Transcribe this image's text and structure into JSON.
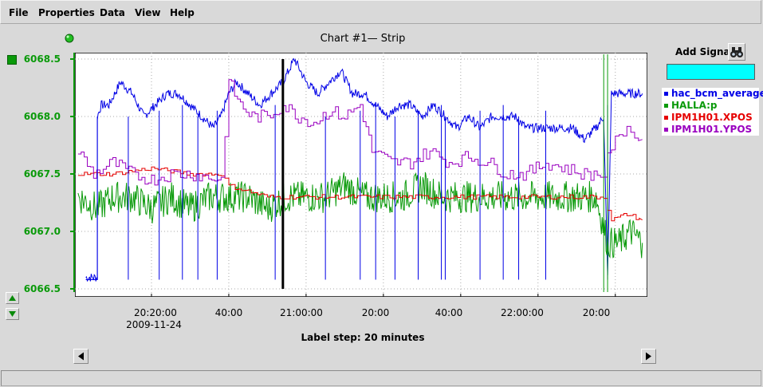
{
  "menu": {
    "file": "File",
    "properties": "Properties",
    "data": "Data",
    "view": "View",
    "help": "Help"
  },
  "chart": {
    "title": "Chart #1— Strip",
    "label_step": "Label step: 20 minutes"
  },
  "add_signal": {
    "label": "Add Signal",
    "value": ""
  },
  "statusbar": {
    "text": ""
  },
  "icons": {
    "status_dot": "green-led-icon",
    "color_box": "green-square-icon",
    "scale_up": "triangle-up-icon",
    "scale_down": "triangle-down-icon",
    "binoculars": "binoculars-icon",
    "scroll_left": "triangle-left-icon",
    "scroll_right": "triangle-right-icon"
  },
  "colors": {
    "hac_bcm_average": "#0000e6",
    "HALLA:p": "#0a9a0a",
    "IPM1H01.XPOS": "#e60000",
    "IPM1H01.YPOS": "#9a00c0",
    "signal_input_bg": "#00ffff"
  },
  "chart_data": {
    "type": "line",
    "title": "Chart #1— Strip",
    "xlabel": "Label step: 20 minutes",
    "ylabel": "",
    "x_tick_labels": [
      "20:20:00",
      "40:00",
      "21:00:00",
      "20:00",
      "40:00",
      "22:00:00",
      "20:00"
    ],
    "x_date_label": "2009-11-24",
    "y_tick_labels": [
      "6066.5",
      "6067.0",
      "6067.5",
      "6068.0",
      "6068.5"
    ],
    "ylim": [
      6066.5,
      6068.5
    ],
    "grid": true,
    "legend_position": "right",
    "cursor_time": "20:54:30",
    "series": [
      {
        "name": "hac_bcm_average",
        "color": "#0000e6",
        "points": [
          [
            "20:03",
            6066.6
          ],
          [
            "20:06",
            6066.6
          ],
          [
            "20:06",
            6068.0
          ],
          [
            "20:07",
            6068.1
          ],
          [
            "20:09",
            6068.1
          ],
          [
            "20:12",
            6068.3
          ],
          [
            "20:15",
            6068.2
          ],
          [
            "20:18",
            6068.0
          ],
          [
            "20:21",
            6068.1
          ],
          [
            "20:24",
            6068.2
          ],
          [
            "20:27",
            6068.2
          ],
          [
            "20:30",
            6068.1
          ],
          [
            "20:33",
            6068.0
          ],
          [
            "20:36",
            6067.9
          ],
          [
            "20:38",
            6068.0
          ],
          [
            "20:40",
            6068.2
          ],
          [
            "20:42",
            6068.3
          ],
          [
            "20:45",
            6068.2
          ],
          [
            "20:48",
            6068.1
          ],
          [
            "20:51",
            6068.2
          ],
          [
            "20:54",
            6068.3
          ],
          [
            "20:57",
            6068.5
          ],
          [
            "21:00",
            6068.3
          ],
          [
            "21:03",
            6068.2
          ],
          [
            "21:06",
            6068.3
          ],
          [
            "21:09",
            6068.4
          ],
          [
            "21:12",
            6068.2
          ],
          [
            "21:15",
            6068.2
          ],
          [
            "21:18",
            6068.1
          ],
          [
            "21:21",
            6068.0
          ],
          [
            "21:24",
            6068.1
          ],
          [
            "21:27",
            6068.1
          ],
          [
            "21:30",
            6068.0
          ],
          [
            "21:33",
            6068.1
          ],
          [
            "21:36",
            6068.0
          ],
          [
            "21:39",
            6067.9
          ],
          [
            "21:42",
            6068.0
          ],
          [
            "21:45",
            6067.9
          ],
          [
            "21:48",
            6068.0
          ],
          [
            "21:51",
            6068.0
          ],
          [
            "21:54",
            6068.0
          ],
          [
            "21:57",
            6067.9
          ],
          [
            "22:00",
            6067.9
          ],
          [
            "22:03",
            6067.9
          ],
          [
            "22:06",
            6067.9
          ],
          [
            "22:09",
            6067.9
          ],
          [
            "22:12",
            6067.8
          ],
          [
            "22:15",
            6067.9
          ],
          [
            "22:17",
            6068.0
          ],
          [
            "22:18",
            6066.6
          ],
          [
            "22:19",
            6068.2
          ],
          [
            "22:24",
            6068.2
          ],
          [
            "22:27",
            6068.2
          ]
        ]
      },
      {
        "name": "HALLA:p",
        "color": "#0a9a0a",
        "points": [
          [
            "20:01",
            6067.3
          ],
          [
            "20:06",
            6067.2
          ],
          [
            "20:10",
            6067.3
          ],
          [
            "20:15",
            6067.3
          ],
          [
            "20:20",
            6067.2
          ],
          [
            "20:25",
            6067.3
          ],
          [
            "20:30",
            6067.2
          ],
          [
            "20:35",
            6067.3
          ],
          [
            "20:40",
            6067.3
          ],
          [
            "20:45",
            6067.3
          ],
          [
            "20:50",
            6067.2
          ],
          [
            "20:55",
            6067.3
          ],
          [
            "21:00",
            6067.3
          ],
          [
            "21:05",
            6067.3
          ],
          [
            "21:10",
            6067.4
          ],
          [
            "21:15",
            6067.3
          ],
          [
            "21:20",
            6067.3
          ],
          [
            "21:25",
            6067.3
          ],
          [
            "21:30",
            6067.4
          ],
          [
            "21:35",
            6067.3
          ],
          [
            "21:40",
            6067.3
          ],
          [
            "21:45",
            6067.3
          ],
          [
            "21:50",
            6067.3
          ],
          [
            "21:55",
            6067.3
          ],
          [
            "22:00",
            6067.3
          ],
          [
            "22:05",
            6067.3
          ],
          [
            "22:10",
            6067.3
          ],
          [
            "22:15",
            6067.3
          ],
          [
            "22:18",
            6066.9
          ],
          [
            "22:21",
            6066.9
          ],
          [
            "22:24",
            6067.0
          ],
          [
            "22:27",
            6066.9
          ]
        ]
      },
      {
        "name": "IPM1H01.XPOS",
        "color": "#e60000",
        "points": [
          [
            "20:01",
            6067.5
          ],
          [
            "20:10",
            6067.5
          ],
          [
            "20:20",
            6067.55
          ],
          [
            "20:30",
            6067.5
          ],
          [
            "20:38",
            6067.5
          ],
          [
            "20:40",
            6067.4
          ],
          [
            "20:50",
            6067.3
          ],
          [
            "21:00",
            6067.3
          ],
          [
            "21:10",
            6067.3
          ],
          [
            "21:20",
            6067.3
          ],
          [
            "21:30",
            6067.3
          ],
          [
            "21:40",
            6067.3
          ],
          [
            "21:50",
            6067.3
          ],
          [
            "22:00",
            6067.3
          ],
          [
            "22:10",
            6067.3
          ],
          [
            "22:17",
            6067.3
          ],
          [
            "22:19",
            6067.1
          ],
          [
            "22:23",
            6067.15
          ],
          [
            "22:27",
            6067.1
          ]
        ]
      },
      {
        "name": "IPM1H01.YPOS",
        "color": "#9a00c0",
        "points": [
          [
            "20:01",
            6067.7
          ],
          [
            "20:05",
            6067.5
          ],
          [
            "20:10",
            6067.6
          ],
          [
            "20:15",
            6067.5
          ],
          [
            "20:20",
            6067.45
          ],
          [
            "20:25",
            6067.5
          ],
          [
            "20:30",
            6067.5
          ],
          [
            "20:38",
            6067.45
          ],
          [
            "20:40",
            6068.3
          ],
          [
            "20:43",
            6068.1
          ],
          [
            "20:46",
            6068.0
          ],
          [
            "20:50",
            6068.0
          ],
          [
            "20:54",
            6068.1
          ],
          [
            "20:58",
            6068.0
          ],
          [
            "21:02",
            6067.95
          ],
          [
            "21:06",
            6068.05
          ],
          [
            "21:10",
            6068.0
          ],
          [
            "21:14",
            6068.1
          ],
          [
            "21:17",
            6067.7
          ],
          [
            "21:22",
            6067.6
          ],
          [
            "21:27",
            6067.6
          ],
          [
            "21:32",
            6067.7
          ],
          [
            "21:37",
            6067.6
          ],
          [
            "21:42",
            6067.65
          ],
          [
            "21:47",
            6067.6
          ],
          [
            "21:52",
            6067.5
          ],
          [
            "21:57",
            6067.5
          ],
          [
            "22:02",
            6067.6
          ],
          [
            "22:07",
            6067.55
          ],
          [
            "22:12",
            6067.5
          ],
          [
            "22:17",
            6067.5
          ],
          [
            "22:19",
            6067.75
          ],
          [
            "22:21",
            6067.8
          ],
          [
            "22:23",
            6067.95
          ],
          [
            "22:25",
            6067.8
          ],
          [
            "22:27",
            6067.8
          ]
        ]
      }
    ]
  }
}
